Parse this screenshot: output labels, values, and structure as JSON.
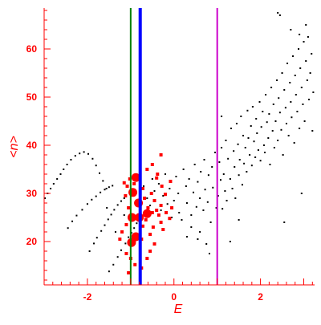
{
  "chart_data": {
    "type": "scatter",
    "xlabel": "E",
    "ylabel": "<n>",
    "xlim": [
      -3.0,
      3.25
    ],
    "ylim": [
      11.0,
      68.5
    ],
    "x_ticks": [
      -2,
      0,
      2
    ],
    "x_tick_labels": [
      "-2",
      "0",
      "2"
    ],
    "y_ticks": [
      20,
      30,
      40,
      50,
      60
    ],
    "y_tick_labels": [
      "20",
      "30",
      "40",
      "50",
      "60"
    ],
    "grid": false,
    "colors": {
      "axes": "#ff0000",
      "points": "#000000",
      "highlight": "#ff0000",
      "line_green": "#008000",
      "line_blue": "#0000ff",
      "line_magenta": "#cc00cc"
    },
    "vertical_lines": [
      {
        "x": -1.0,
        "color": "#008000",
        "style": "thin"
      },
      {
        "x": -0.78,
        "color": "#0000ff",
        "style": "thick"
      },
      {
        "x": 1.0,
        "color": "#cc00cc",
        "style": "thin"
      }
    ],
    "curve_points": [
      [
        -2.98,
        29.0
      ],
      [
        -2.92,
        30.0
      ],
      [
        -2.85,
        31.0
      ],
      [
        -2.78,
        32.0
      ],
      [
        -2.7,
        33.0
      ],
      [
        -2.62,
        34.0
      ],
      [
        -2.55,
        35.0
      ],
      [
        -2.47,
        36.0
      ],
      [
        -2.38,
        37.0
      ],
      [
        -2.28,
        37.8
      ],
      [
        -2.18,
        38.3
      ],
      [
        -2.08,
        38.6
      ],
      [
        -1.98,
        38.2
      ],
      [
        -1.88,
        37.2
      ],
      [
        -1.8,
        35.8
      ],
      [
        -1.72,
        34.2
      ],
      [
        -1.64,
        32.6
      ],
      [
        -1.56,
        31.0
      ]
    ],
    "black_points": [
      [
        -2.45,
        22.8
      ],
      [
        -2.35,
        24.2
      ],
      [
        -2.25,
        25.4
      ],
      [
        -2.12,
        26.6
      ],
      [
        -2.0,
        27.8
      ],
      [
        -1.9,
        28.7
      ],
      [
        -1.8,
        29.4
      ],
      [
        -1.7,
        30.2
      ],
      [
        -1.6,
        30.8
      ],
      [
        -1.5,
        31.3
      ],
      [
        -1.42,
        31.6
      ],
      [
        -1.95,
        18.0
      ],
      [
        -1.85,
        19.6
      ],
      [
        -1.78,
        20.8
      ],
      [
        -1.68,
        22.2
      ],
      [
        -1.6,
        23.4
      ],
      [
        -1.52,
        24.6
      ],
      [
        -1.45,
        25.6
      ],
      [
        -1.38,
        26.6
      ],
      [
        -1.3,
        27.6
      ],
      [
        -1.22,
        28.4
      ],
      [
        -1.15,
        29.0
      ],
      [
        -1.5,
        13.8
      ],
      [
        -1.4,
        15.2
      ],
      [
        -1.3,
        16.8
      ],
      [
        -1.22,
        18.2
      ],
      [
        -1.12,
        19.6
      ],
      [
        -1.05,
        20.9
      ],
      [
        -0.98,
        21.8
      ],
      [
        -0.92,
        22.8
      ],
      [
        -0.86,
        23.8
      ],
      [
        -1.55,
        27.0
      ],
      [
        -1.35,
        22.0
      ],
      [
        -1.15,
        25.5
      ],
      [
        -0.7,
        31.5
      ],
      [
        -0.62,
        29.0
      ],
      [
        -0.55,
        27.5
      ],
      [
        -0.5,
        33.0
      ],
      [
        -0.45,
        30.5
      ],
      [
        -0.35,
        32.0
      ],
      [
        -0.3,
        26.5
      ],
      [
        -0.25,
        29.5
      ],
      [
        -0.2,
        34.0
      ],
      [
        -0.15,
        27.8
      ],
      [
        -0.1,
        31.0
      ],
      [
        -0.05,
        25.0
      ],
      [
        0.0,
        28.5
      ],
      [
        0.05,
        33.5
      ],
      [
        0.1,
        30.0
      ],
      [
        0.12,
        26.0
      ],
      [
        0.18,
        24.5
      ],
      [
        0.22,
        35.0
      ],
      [
        0.28,
        31.5
      ],
      [
        0.3,
        28.0
      ],
      [
        0.35,
        33.0
      ],
      [
        0.4,
        25.5
      ],
      [
        0.45,
        30.2
      ],
      [
        0.48,
        36.0
      ],
      [
        0.52,
        27.2
      ],
      [
        0.55,
        32.4
      ],
      [
        0.6,
        29.0
      ],
      [
        0.62,
        34.5
      ],
      [
        0.68,
        26.5
      ],
      [
        0.7,
        37.0
      ],
      [
        0.72,
        30.8
      ],
      [
        0.78,
        28.2
      ],
      [
        0.8,
        33.8
      ],
      [
        0.85,
        24.0
      ],
      [
        0.88,
        35.5
      ],
      [
        0.9,
        31.2
      ],
      [
        0.95,
        38.5
      ],
      [
        0.98,
        27.0
      ],
      [
        0.6,
        22.0
      ],
      [
        0.75,
        19.5
      ],
      [
        0.82,
        17.5
      ],
      [
        0.55,
        20.5
      ],
      [
        0.4,
        23.0
      ],
      [
        0.3,
        21.0
      ],
      [
        1.02,
        29.5
      ],
      [
        1.05,
        36.5
      ],
      [
        1.08,
        32.8
      ],
      [
        1.1,
        39.5
      ],
      [
        1.12,
        26.8
      ],
      [
        1.15,
        34.0
      ],
      [
        1.18,
        30.5
      ],
      [
        1.2,
        41.0
      ],
      [
        1.22,
        28.5
      ],
      [
        1.25,
        37.2
      ],
      [
        1.3,
        33.0
      ],
      [
        1.32,
        43.5
      ],
      [
        1.35,
        31.0
      ],
      [
        1.38,
        38.8
      ],
      [
        1.4,
        35.5
      ],
      [
        1.42,
        29.0
      ],
      [
        1.45,
        44.5
      ],
      [
        1.48,
        40.2
      ],
      [
        1.5,
        33.8
      ],
      [
        1.52,
        37.0
      ],
      [
        1.55,
        46.0
      ],
      [
        1.58,
        31.8
      ],
      [
        1.6,
        42.0
      ],
      [
        1.62,
        36.2
      ],
      [
        1.65,
        39.5
      ],
      [
        1.68,
        34.5
      ],
      [
        1.7,
        47.2
      ],
      [
        1.72,
        41.5
      ],
      [
        1.75,
        38.0
      ],
      [
        1.78,
        44.0
      ],
      [
        1.8,
        35.8
      ],
      [
        1.82,
        48.0
      ],
      [
        1.85,
        40.8
      ],
      [
        1.88,
        37.5
      ],
      [
        1.9,
        45.5
      ],
      [
        1.92,
        42.5
      ],
      [
        1.95,
        39.0
      ],
      [
        1.98,
        49.0
      ],
      [
        2.0,
        36.8
      ],
      [
        2.02,
        43.8
      ],
      [
        2.05,
        47.0
      ],
      [
        2.08,
        40.0
      ],
      [
        2.1,
        38.5
      ],
      [
        2.12,
        50.5
      ],
      [
        2.15,
        44.8
      ],
      [
        2.18,
        41.5
      ],
      [
        2.2,
        46.5
      ],
      [
        2.22,
        36.0
      ],
      [
        2.25,
        52.0
      ],
      [
        2.28,
        43.0
      ],
      [
        2.3,
        48.5
      ],
      [
        2.32,
        39.5
      ],
      [
        2.35,
        45.0
      ],
      [
        2.38,
        53.5
      ],
      [
        2.4,
        41.0
      ],
      [
        2.42,
        49.8
      ],
      [
        2.45,
        46.8
      ],
      [
        2.48,
        43.2
      ],
      [
        2.5,
        55.0
      ],
      [
        2.52,
        38.0
      ],
      [
        2.55,
        51.5
      ],
      [
        2.58,
        47.8
      ],
      [
        2.6,
        44.5
      ],
      [
        2.62,
        57.0
      ],
      [
        2.65,
        42.0
      ],
      [
        2.68,
        53.0
      ],
      [
        2.7,
        49.0
      ],
      [
        2.72,
        45.8
      ],
      [
        2.75,
        58.5
      ],
      [
        2.78,
        40.5
      ],
      [
        2.8,
        54.5
      ],
      [
        2.82,
        50.5
      ],
      [
        2.85,
        47.0
      ],
      [
        2.88,
        60.0
      ],
      [
        2.9,
        43.5
      ],
      [
        2.92,
        56.0
      ],
      [
        2.95,
        52.0
      ],
      [
        2.98,
        48.5
      ],
      [
        3.0,
        61.5
      ],
      [
        3.02,
        45.0
      ],
      [
        3.05,
        57.5
      ],
      [
        3.08,
        53.5
      ],
      [
        3.1,
        62.5
      ],
      [
        3.12,
        49.5
      ],
      [
        3.15,
        55.0
      ],
      [
        3.18,
        59.0
      ],
      [
        3.2,
        43.0
      ],
      [
        3.22,
        51.0
      ],
      [
        2.4,
        67.5
      ],
      [
        2.45,
        67.0
      ],
      [
        2.7,
        64.0
      ],
      [
        2.9,
        63.0
      ],
      [
        3.05,
        65.0
      ],
      [
        2.55,
        24.0
      ],
      [
        2.95,
        30.0
      ],
      [
        1.3,
        20.0
      ],
      [
        1.5,
        24.5
      ],
      [
        1.1,
        46.0
      ]
    ],
    "highlight_points": [
      [
        -0.88,
        33.3,
        "large"
      ],
      [
        -0.95,
        30.2,
        "large"
      ],
      [
        -0.82,
        28.0,
        "large"
      ],
      [
        -0.97,
        25.0,
        "large"
      ],
      [
        -0.62,
        25.8,
        "large"
      ],
      [
        -0.8,
        25.0,
        "large"
      ],
      [
        -0.88,
        21.0,
        "large"
      ],
      [
        -0.98,
        19.8,
        "large"
      ],
      [
        -1.15,
        32.2,
        "small"
      ],
      [
        -1.08,
        31.5,
        "small"
      ],
      [
        -1.12,
        29.5,
        "small"
      ],
      [
        -1.02,
        33.0,
        "small"
      ],
      [
        -0.92,
        32.0,
        "small"
      ],
      [
        -0.72,
        31.0,
        "small"
      ],
      [
        -0.68,
        29.0,
        "small"
      ],
      [
        -0.6,
        27.0,
        "small"
      ],
      [
        -0.52,
        30.0,
        "small"
      ],
      [
        -0.45,
        28.5,
        "small"
      ],
      [
        -0.4,
        26.5,
        "small"
      ],
      [
        -0.35,
        25.5,
        "small"
      ],
      [
        -0.3,
        24.0,
        "small"
      ],
      [
        -0.48,
        23.0,
        "small"
      ],
      [
        -0.55,
        21.5,
        "small"
      ],
      [
        -0.65,
        24.5,
        "small"
      ],
      [
        -0.72,
        23.2,
        "small"
      ],
      [
        -0.75,
        20.5,
        "small"
      ],
      [
        -1.05,
        27.0,
        "small"
      ],
      [
        -1.1,
        23.5,
        "small"
      ],
      [
        -1.2,
        22.0,
        "small"
      ],
      [
        -1.25,
        20.5,
        "small"
      ],
      [
        -1.1,
        17.5,
        "small"
      ],
      [
        -1.0,
        16.5,
        "small"
      ],
      [
        -0.9,
        15.2,
        "small"
      ],
      [
        -0.75,
        14.5,
        "small"
      ],
      [
        -1.05,
        13.5,
        "small"
      ],
      [
        -0.62,
        16.5,
        "small"
      ],
      [
        -0.55,
        18.0,
        "small"
      ],
      [
        -0.45,
        19.5,
        "small"
      ],
      [
        -0.3,
        27.5,
        "small"
      ],
      [
        -0.25,
        22.5,
        "small"
      ],
      [
        -0.18,
        26.0,
        "small"
      ],
      [
        -0.1,
        24.8,
        "small"
      ],
      [
        -0.2,
        29.8,
        "small"
      ],
      [
        -0.28,
        31.5,
        "small"
      ],
      [
        -0.3,
        38.0,
        "small"
      ],
      [
        -0.5,
        36.0,
        "small"
      ],
      [
        -0.62,
        35.0,
        "small"
      ],
      [
        -0.38,
        34.0,
        "small"
      ],
      [
        -0.4,
        33.2,
        "small"
      ],
      [
        -0.08,
        32.5,
        "small"
      ],
      [
        -0.05,
        27.0,
        "small"
      ],
      [
        -0.5,
        26.0,
        "small"
      ]
    ]
  }
}
